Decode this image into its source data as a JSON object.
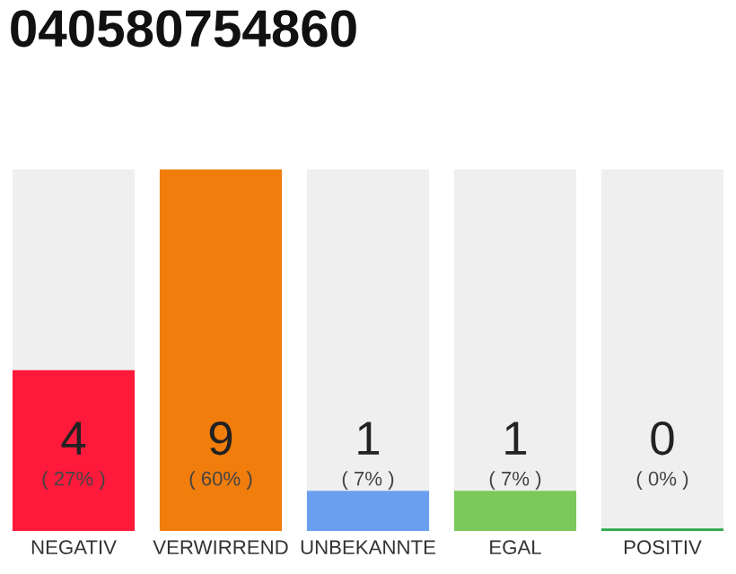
{
  "chart_data": {
    "type": "bar",
    "title": "040580754860",
    "categories": [
      "NEGATIV",
      "VERWIRREND",
      "UNBEKANNTE",
      "EGAL",
      "POSITIV"
    ],
    "values": [
      4,
      9,
      1,
      1,
      0
    ],
    "colors": [
      "#ff1a3c",
      "#f07d0c",
      "#6a9ff0",
      "#7bc95a",
      "#2aa84a"
    ],
    "value_labels": [
      "4\n( 27% )",
      "9\n( 60% )",
      "1\n( 7% )",
      "1\n( 7% )",
      "0\n( 0% )"
    ],
    "ylim": [
      0,
      9
    ],
    "tick_labels": "x",
    "grid": false,
    "legend": false
  }
}
